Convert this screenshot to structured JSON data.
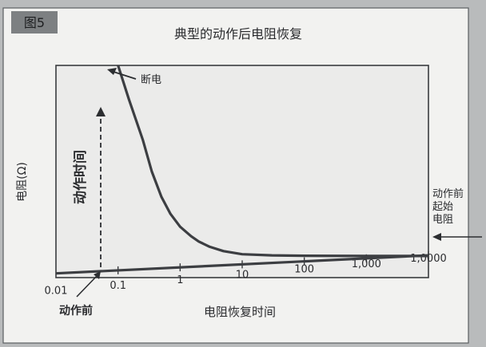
{
  "figure_label": "图5",
  "chart_data": {
    "type": "line",
    "title": "典型的动作后电阻恢复",
    "xlabel": "电阻恢复时间",
    "ylabel": "电阻(Ω)",
    "x_scale": "log",
    "xlim": [
      0.01,
      10000
    ],
    "x_ticks": [
      {
        "value": 0.01,
        "label": "0.01"
      },
      {
        "value": 0.1,
        "label": "0.1"
      },
      {
        "value": 1,
        "label": "1"
      },
      {
        "value": 10,
        "label": "10"
      },
      {
        "value": 100,
        "label": "100"
      },
      {
        "value": 1000,
        "label": "1,000"
      },
      {
        "value": 10000,
        "label": "1,0000"
      }
    ],
    "ylim": [
      0,
      100
    ],
    "y_ticks": [],
    "grid": false,
    "series": [
      {
        "role": "recovery-curve",
        "color": "#3c3e42",
        "x": [
          0.1,
          0.15,
          0.25,
          0.35,
          0.5,
          0.7,
          1,
          1.5,
          2,
          3,
          5,
          10,
          30,
          100,
          1000,
          10000
        ],
        "y": [
          100,
          84,
          65,
          50,
          38,
          30,
          24,
          19.5,
          17,
          14.5,
          12.5,
          11,
          10.5,
          10.3,
          10.2,
          10.2
        ]
      },
      {
        "role": "baseline",
        "color": "#3c3e42",
        "x": [
          0.01,
          10000
        ],
        "y": [
          2,
          10.5
        ]
      }
    ],
    "annotations": {
      "trip_label": "断电",
      "trip_time_label": "动作时间",
      "before_trip_label": "动作前",
      "initial_resistance_label": [
        "动作前",
        "起始",
        "电阻"
      ]
    },
    "colors": {
      "page": "#b9bbbc",
      "panel": "#f2f2f0",
      "plot": "#ebebea",
      "tab": "#7d8082",
      "ink": "#333538"
    }
  }
}
